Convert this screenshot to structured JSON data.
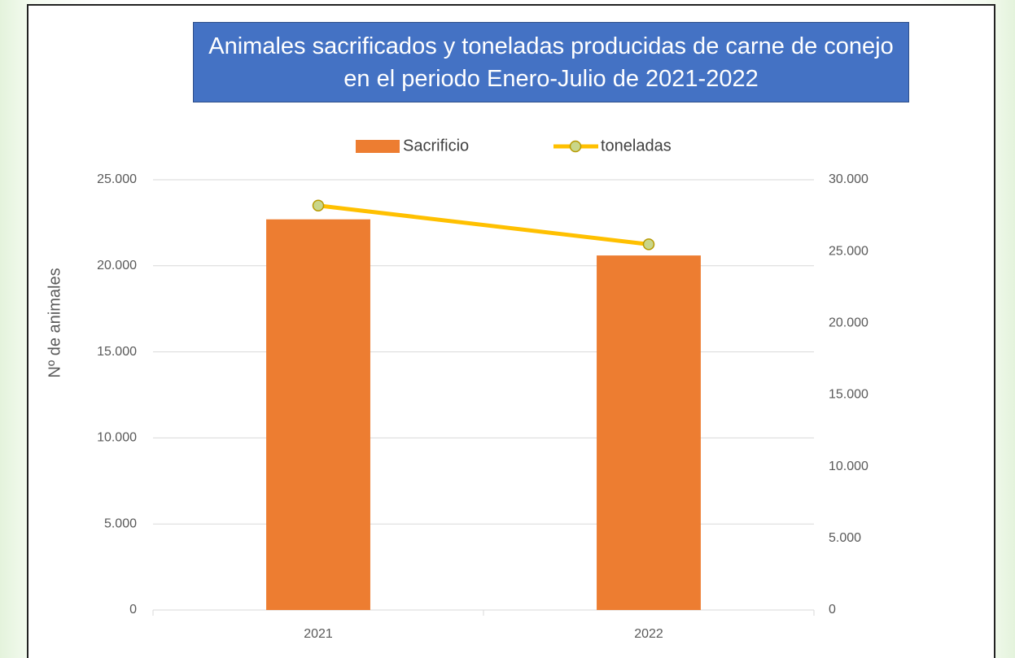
{
  "chart_data": {
    "type": "bar_line",
    "title": "Animales sacrificados y toneladas producidas de carne de conejo en el periodo Enero-Julio de 2021-2022",
    "y_label": "Nº de animales",
    "categories": [
      "2021",
      "2022"
    ],
    "series": [
      {
        "name": "Sacrificio",
        "type": "bar",
        "color": "#ed7d31",
        "values": [
          22700,
          20600
        ]
      },
      {
        "name": "toneladas",
        "type": "line",
        "axis": "y2",
        "color": "#ffc000",
        "values": [
          28200,
          25500
        ]
      }
    ],
    "ylim": [
      0,
      25000
    ],
    "yticks": [
      0,
      {
        "value": 5000,
        "label": "5.000"
      },
      {
        "value": 10000,
        "label": "10.000"
      },
      {
        "value": 15000,
        "label": "15.000"
      },
      {
        "value": 20000,
        "label": "20.000"
      },
      {
        "value": 25000,
        "label": "25.000"
      }
    ],
    "y2lim": [
      0,
      30000
    ],
    "y2ticks": [
      0,
      {
        "value": 5000,
        "label": "5.000"
      },
      {
        "value": 10000,
        "label": "10.000"
      },
      {
        "value": 15000,
        "label": "15.000"
      },
      {
        "value": 20000,
        "label": "20.000"
      },
      {
        "value": 25000,
        "label": "25.000"
      },
      {
        "value": 30000,
        "label": "30.000"
      }
    ],
    "grid": true,
    "legend": "top"
  }
}
